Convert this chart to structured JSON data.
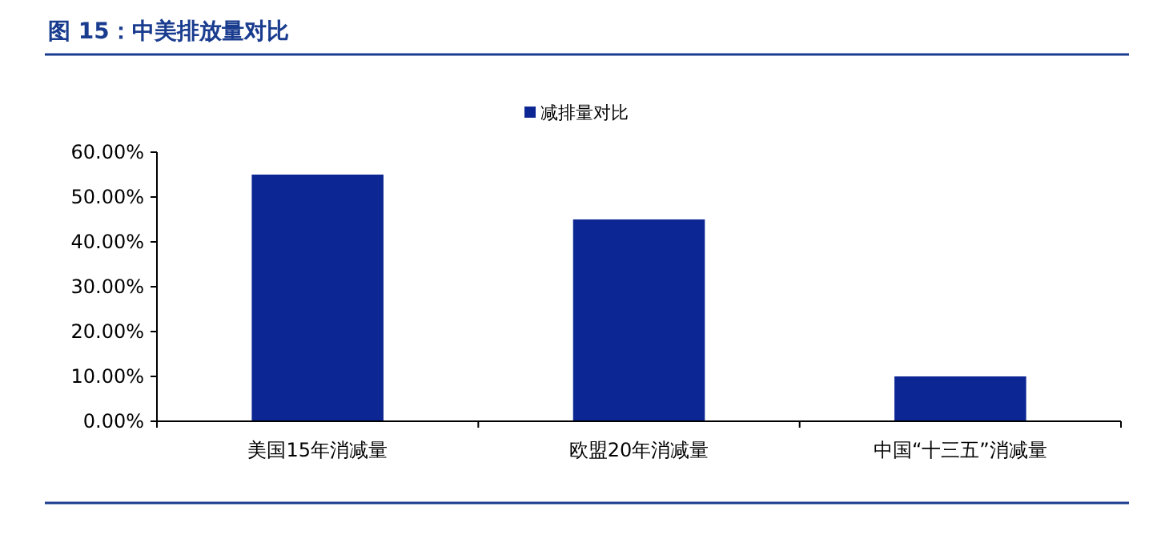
{
  "chart_data": {
    "type": "bar",
    "title": "图 15：中美排放量对比",
    "categories": [
      "美国15年消减量",
      "欧盟20年消减量",
      "中国“十三五”消减量"
    ],
    "series": [
      {
        "name": "减排量对比",
        "color": "#0c2693",
        "values": [
          55,
          45,
          10
        ]
      }
    ],
    "ylim": [
      0,
      60
    ],
    "yticks": [
      {
        "value": 0,
        "label": "0.00%"
      },
      {
        "value": 10,
        "label": "10.00%"
      },
      {
        "value": 20,
        "label": "20.00%"
      },
      {
        "value": 30,
        "label": "30.00%"
      },
      {
        "value": 40,
        "label": "40.00%"
      },
      {
        "value": 50,
        "label": "50.00%"
      },
      {
        "value": 60,
        "label": "60.00%"
      }
    ],
    "legend": "top",
    "grid": false
  }
}
